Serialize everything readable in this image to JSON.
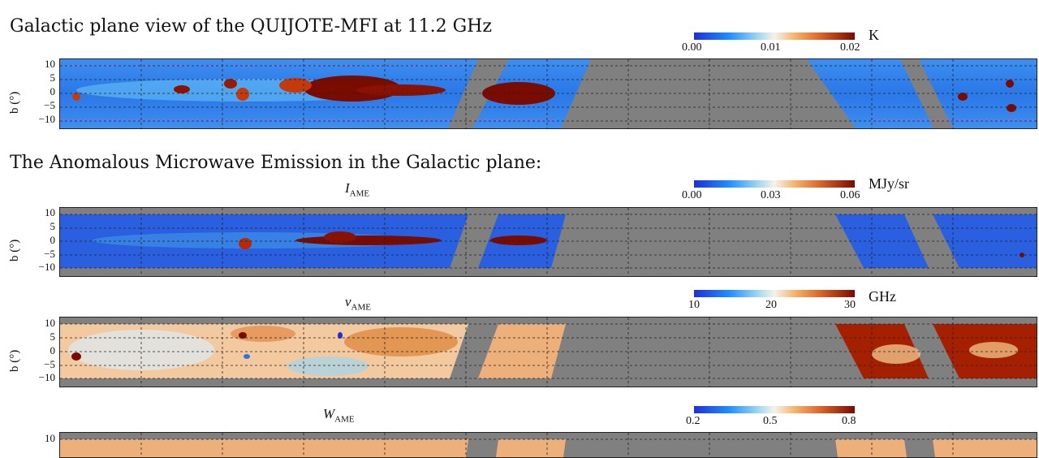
{
  "section1_heading": "Galactic plane view of the QUIJOTE-MFI at 11.2 GHz",
  "section2_heading": "The Anomalous Microwave Emission in the Galactic plane:",
  "ylabel": "b (°)",
  "yticks": [
    "10",
    "5",
    "0",
    "−5",
    "−10"
  ],
  "panels": [
    {
      "name": "mfi",
      "title": "",
      "unit": "K",
      "ticks": [
        "0.00",
        "0.01",
        "0.02"
      ],
      "colormap": "blue-white-red",
      "range": [
        0.0,
        0.02
      ]
    },
    {
      "name": "iame",
      "title_main": "I",
      "title_sub": "AME",
      "unit": "MJy/sr",
      "ticks": [
        "0.00",
        "0.03",
        "0.06"
      ],
      "colormap": "blue-white-red",
      "range": [
        0.0,
        0.06
      ]
    },
    {
      "name": "nuame",
      "title_main": "ν",
      "title_sub": "AME",
      "unit": "GHz",
      "ticks": [
        "10",
        "20",
        "30"
      ],
      "colormap": "blue-white-red",
      "range": [
        10,
        30
      ]
    },
    {
      "name": "wame",
      "title_main": "W",
      "title_sub": "AME",
      "unit": "",
      "ticks": [
        "0.2",
        "0.5",
        "0.8"
      ],
      "colormap": "blue-white-red",
      "range": [
        0.2,
        0.8
      ]
    }
  ],
  "colors": {
    "masked": "#808080",
    "cmap_low": "#1f2fd9",
    "cmap_mid": "#f5f2ec",
    "cmap_high": "#7a0b00"
  }
}
